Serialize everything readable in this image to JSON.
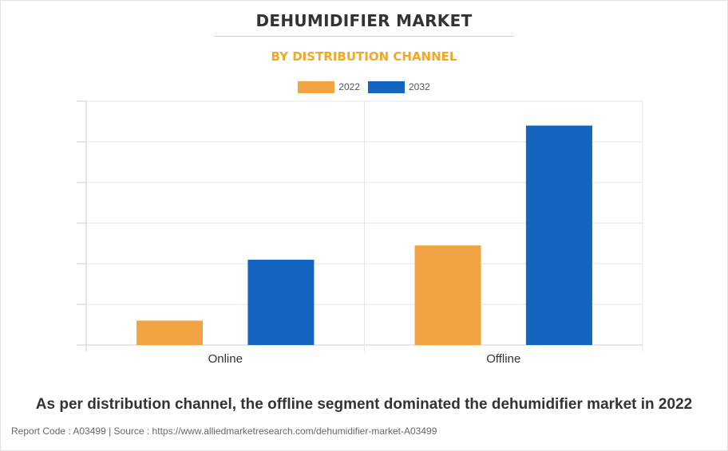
{
  "chart_data": {
    "type": "bar",
    "title": "DEHUMIDIFIER MARKET",
    "subtitle": "BY DISTRIBUTION CHANNEL",
    "categories": [
      "Online",
      "Offline"
    ],
    "series": [
      {
        "name": "2022",
        "color": "#f2a444",
        "values": [
          0.6,
          2.45
        ]
      },
      {
        "name": "2032",
        "color": "#1565c0",
        "values": [
          2.1,
          5.4
        ]
      }
    ],
    "ylim": [
      0,
      6
    ],
    "yticks": [
      0,
      1,
      2,
      3,
      4,
      5,
      6
    ],
    "ytick_labels_visible": false,
    "grid": true,
    "legend_position": "top-center",
    "xlabel": "",
    "ylabel": ""
  },
  "caption": "As per distribution channel, the offline segment dominated the dehumidifier market in 2022",
  "footer": "Report Code : A03499  |  Source : https://www.alliedmarketresearch.com/dehumidifier-market-A03499"
}
